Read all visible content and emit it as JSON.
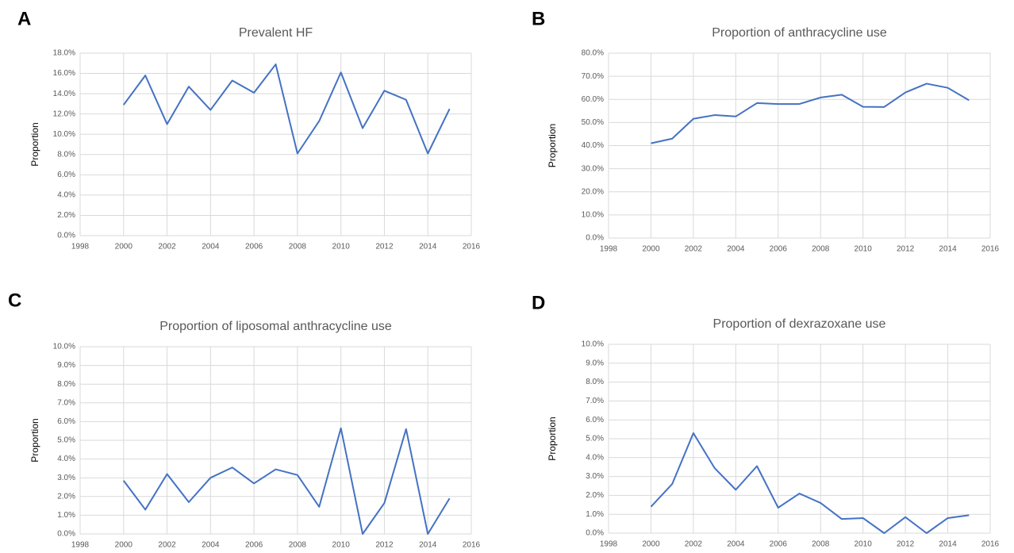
{
  "chart_data": [
    {
      "type": "line",
      "panel_label": "A",
      "title": "Prevalent HF",
      "ylabel": "Proportion",
      "color": "#4472c4",
      "grid": true,
      "x": [
        2000,
        2001,
        2002,
        2003,
        2004,
        2005,
        2006,
        2007,
        2008,
        2009,
        2010,
        2011,
        2012,
        2013,
        2014,
        2015
      ],
      "values": [
        12.9,
        15.8,
        11.0,
        14.7,
        12.4,
        15.3,
        14.1,
        16.9,
        8.1,
        11.3,
        16.1,
        10.6,
        14.3,
        13.4,
        8.1,
        12.5
      ],
      "xlim": [
        1998,
        2016
      ],
      "xticks": [
        1998,
        2000,
        2002,
        2004,
        2006,
        2008,
        2010,
        2012,
        2014,
        2016
      ],
      "ylim": [
        0,
        18
      ],
      "yticks": [
        {
          "value": 0,
          "label": "0.0%"
        },
        {
          "value": 2,
          "label": "2.0%"
        },
        {
          "value": 4,
          "label": "4.0%"
        },
        {
          "value": 6,
          "label": "6.0%"
        },
        {
          "value": 8,
          "label": "8.0%"
        },
        {
          "value": 10,
          "label": "10.0%"
        },
        {
          "value": 12,
          "label": "12.0%"
        },
        {
          "value": 14,
          "label": "14.0%"
        },
        {
          "value": 16,
          "label": "16.0%"
        },
        {
          "value": 18,
          "label": "18.0%"
        }
      ]
    },
    {
      "type": "line",
      "panel_label": "B",
      "title": "Proportion of anthracycline use",
      "ylabel": "Proportion",
      "color": "#4472c4",
      "grid": true,
      "x": [
        2000,
        2001,
        2002,
        2003,
        2004,
        2005,
        2006,
        2007,
        2008,
        2009,
        2010,
        2011,
        2012,
        2013,
        2014,
        2015
      ],
      "values": [
        41.0,
        43.0,
        51.6,
        53.2,
        52.6,
        58.4,
        58.0,
        58.0,
        60.8,
        62.0,
        56.8,
        56.7,
        63.0,
        66.8,
        65.0,
        59.6
      ],
      "xlim": [
        1998,
        2016
      ],
      "xticks": [
        1998,
        2000,
        2002,
        2004,
        2006,
        2008,
        2010,
        2012,
        2014,
        2016
      ],
      "ylim": [
        0,
        80
      ],
      "yticks": [
        {
          "value": 0,
          "label": "0.0%"
        },
        {
          "value": 10,
          "label": "10.0%"
        },
        {
          "value": 20,
          "label": "20.0%"
        },
        {
          "value": 30,
          "label": "30.0%"
        },
        {
          "value": 40,
          "label": "40.0%"
        },
        {
          "value": 50,
          "label": "50.0%"
        },
        {
          "value": 60,
          "label": "60.0%"
        },
        {
          "value": 70,
          "label": "70.0%"
        },
        {
          "value": 80,
          "label": "80.0%"
        }
      ]
    },
    {
      "type": "line",
      "panel_label": "C",
      "title": "Proportion of liposomal anthracycline use",
      "ylabel": "Proportion",
      "color": "#4472c4",
      "grid": true,
      "x": [
        2000,
        2001,
        2002,
        2003,
        2004,
        2005,
        2006,
        2007,
        2008,
        2009,
        2010,
        2011,
        2012,
        2013,
        2014,
        2015
      ],
      "values": [
        2.85,
        1.3,
        3.2,
        1.7,
        3.0,
        3.55,
        2.7,
        3.45,
        3.15,
        1.45,
        5.65,
        0,
        1.65,
        5.6,
        0,
        1.9
      ],
      "xlim": [
        1998,
        2016
      ],
      "xticks": [
        1998,
        2000,
        2002,
        2004,
        2006,
        2008,
        2010,
        2012,
        2014,
        2016
      ],
      "ylim": [
        0,
        10
      ],
      "yticks": [
        {
          "value": 0,
          "label": "0.0%"
        },
        {
          "value": 1,
          "label": "1.0%"
        },
        {
          "value": 2,
          "label": "2.0%"
        },
        {
          "value": 3,
          "label": "3.0%"
        },
        {
          "value": 4,
          "label": "4.0%"
        },
        {
          "value": 5,
          "label": "5.0%"
        },
        {
          "value": 6,
          "label": "6.0%"
        },
        {
          "value": 7,
          "label": "7.0%"
        },
        {
          "value": 8,
          "label": "8.0%"
        },
        {
          "value": 9,
          "label": "9.0%"
        },
        {
          "value": 10,
          "label": "10.0%"
        }
      ]
    },
    {
      "type": "line",
      "panel_label": "D",
      "title": "Proportion of dexrazoxane use",
      "ylabel": "Proportion",
      "color": "#4472c4",
      "grid": true,
      "x": [
        2000,
        2001,
        2002,
        2003,
        2004,
        2005,
        2006,
        2007,
        2008,
        2009,
        2010,
        2011,
        2012,
        2013,
        2014,
        2015
      ],
      "values": [
        1.4,
        2.6,
        5.3,
        3.45,
        2.3,
        3.55,
        1.35,
        2.1,
        1.6,
        0.75,
        0.8,
        0,
        0.85,
        0,
        0.8,
        0.95
      ],
      "xlim": [
        1998,
        2016
      ],
      "xticks": [
        1998,
        2000,
        2002,
        2004,
        2006,
        2008,
        2010,
        2012,
        2014,
        2016
      ],
      "ylim": [
        0,
        10
      ],
      "yticks": [
        {
          "value": 0,
          "label": "0.0%"
        },
        {
          "value": 1,
          "label": "1.0%"
        },
        {
          "value": 2,
          "label": "2.0%"
        },
        {
          "value": 3,
          "label": "3.0%"
        },
        {
          "value": 4,
          "label": "4.0%"
        },
        {
          "value": 5,
          "label": "5.0%"
        },
        {
          "value": 6,
          "label": "6.0%"
        },
        {
          "value": 7,
          "label": "7.0%"
        },
        {
          "value": 8,
          "label": "8.0%"
        },
        {
          "value": 9,
          "label": "9.0%"
        },
        {
          "value": 10,
          "label": "10.0%"
        }
      ]
    }
  ]
}
